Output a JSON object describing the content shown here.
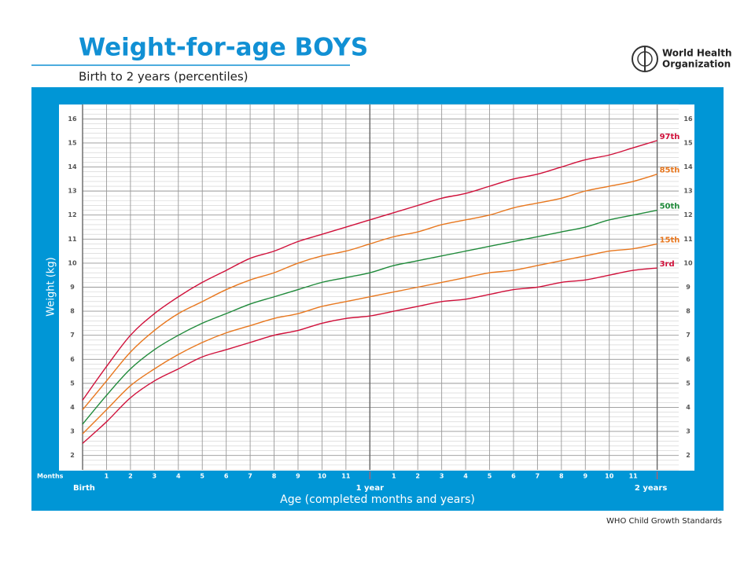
{
  "chart_data": {
    "type": "line",
    "title": "Weight-for-age BOYS",
    "subtitle": "Birth to 2 years (percentiles)",
    "logo_text": [
      "World Health",
      "Organization"
    ],
    "ylabel": "Weight (kg)",
    "xlabel": "Age (completed months and years)",
    "x_unit_label": "Months",
    "footer": "WHO Child Growth Standards",
    "x": [
      0,
      1,
      2,
      3,
      4,
      5,
      6,
      7,
      8,
      9,
      10,
      11,
      12,
      13,
      14,
      15,
      16,
      17,
      18,
      19,
      20,
      21,
      22,
      23,
      24
    ],
    "xlim": [
      0,
      24.9
    ],
    "ylim": [
      1.4,
      16.6
    ],
    "xticks": [
      {
        "value": 0,
        "label": "Birth"
      },
      1,
      2,
      3,
      4,
      5,
      6,
      7,
      8,
      9,
      10,
      11,
      {
        "value": 12,
        "label": "1 year"
      },
      {
        "value": 13,
        "label": "1"
      },
      {
        "value": 14,
        "label": "2"
      },
      {
        "value": 15,
        "label": "3"
      },
      {
        "value": 16,
        "label": "4"
      },
      {
        "value": 17,
        "label": "5"
      },
      {
        "value": 18,
        "label": "6"
      },
      {
        "value": 19,
        "label": "7"
      },
      {
        "value": 20,
        "label": "8"
      },
      {
        "value": 21,
        "label": "9"
      },
      {
        "value": 22,
        "label": "10"
      },
      {
        "value": 23,
        "label": "11"
      },
      {
        "value": 24,
        "label": "2 years"
      }
    ],
    "yticks": [
      2,
      3,
      4,
      5,
      6,
      7,
      8,
      9,
      10,
      11,
      12,
      13,
      14,
      15,
      16
    ],
    "y_minor_step": 0.2,
    "grid": true,
    "series": [
      {
        "name": "97th",
        "color": "#d0103a",
        "values": [
          4.3,
          5.7,
          7.0,
          7.9,
          8.6,
          9.2,
          9.7,
          10.2,
          10.5,
          10.9,
          11.2,
          11.5,
          11.8,
          12.1,
          12.4,
          12.7,
          12.9,
          13.2,
          13.5,
          13.7,
          14.0,
          14.3,
          14.5,
          14.8,
          15.1
        ]
      },
      {
        "name": "85th",
        "color": "#e8771e",
        "values": [
          3.9,
          5.1,
          6.3,
          7.2,
          7.9,
          8.4,
          8.9,
          9.3,
          9.6,
          10.0,
          10.3,
          10.5,
          10.8,
          11.1,
          11.3,
          11.6,
          11.8,
          12.0,
          12.3,
          12.5,
          12.7,
          13.0,
          13.2,
          13.4,
          13.7
        ]
      },
      {
        "name": "50th",
        "color": "#1f8a3a",
        "values": [
          3.3,
          4.5,
          5.6,
          6.4,
          7.0,
          7.5,
          7.9,
          8.3,
          8.6,
          8.9,
          9.2,
          9.4,
          9.6,
          9.9,
          10.1,
          10.3,
          10.5,
          10.7,
          10.9,
          11.1,
          11.3,
          11.5,
          11.8,
          12.0,
          12.2
        ]
      },
      {
        "name": "15th",
        "color": "#e8771e",
        "values": [
          2.9,
          3.9,
          4.9,
          5.6,
          6.2,
          6.7,
          7.1,
          7.4,
          7.7,
          7.9,
          8.2,
          8.4,
          8.6,
          8.8,
          9.0,
          9.2,
          9.4,
          9.6,
          9.7,
          9.9,
          10.1,
          10.3,
          10.5,
          10.6,
          10.8
        ]
      },
      {
        "name": "3rd",
        "color": "#d0103a",
        "values": [
          2.5,
          3.4,
          4.4,
          5.1,
          5.6,
          6.1,
          6.4,
          6.7,
          7.0,
          7.2,
          7.5,
          7.7,
          7.8,
          8.0,
          8.2,
          8.4,
          8.5,
          8.7,
          8.9,
          9.0,
          9.2,
          9.3,
          9.5,
          9.7,
          9.8
        ]
      }
    ]
  }
}
